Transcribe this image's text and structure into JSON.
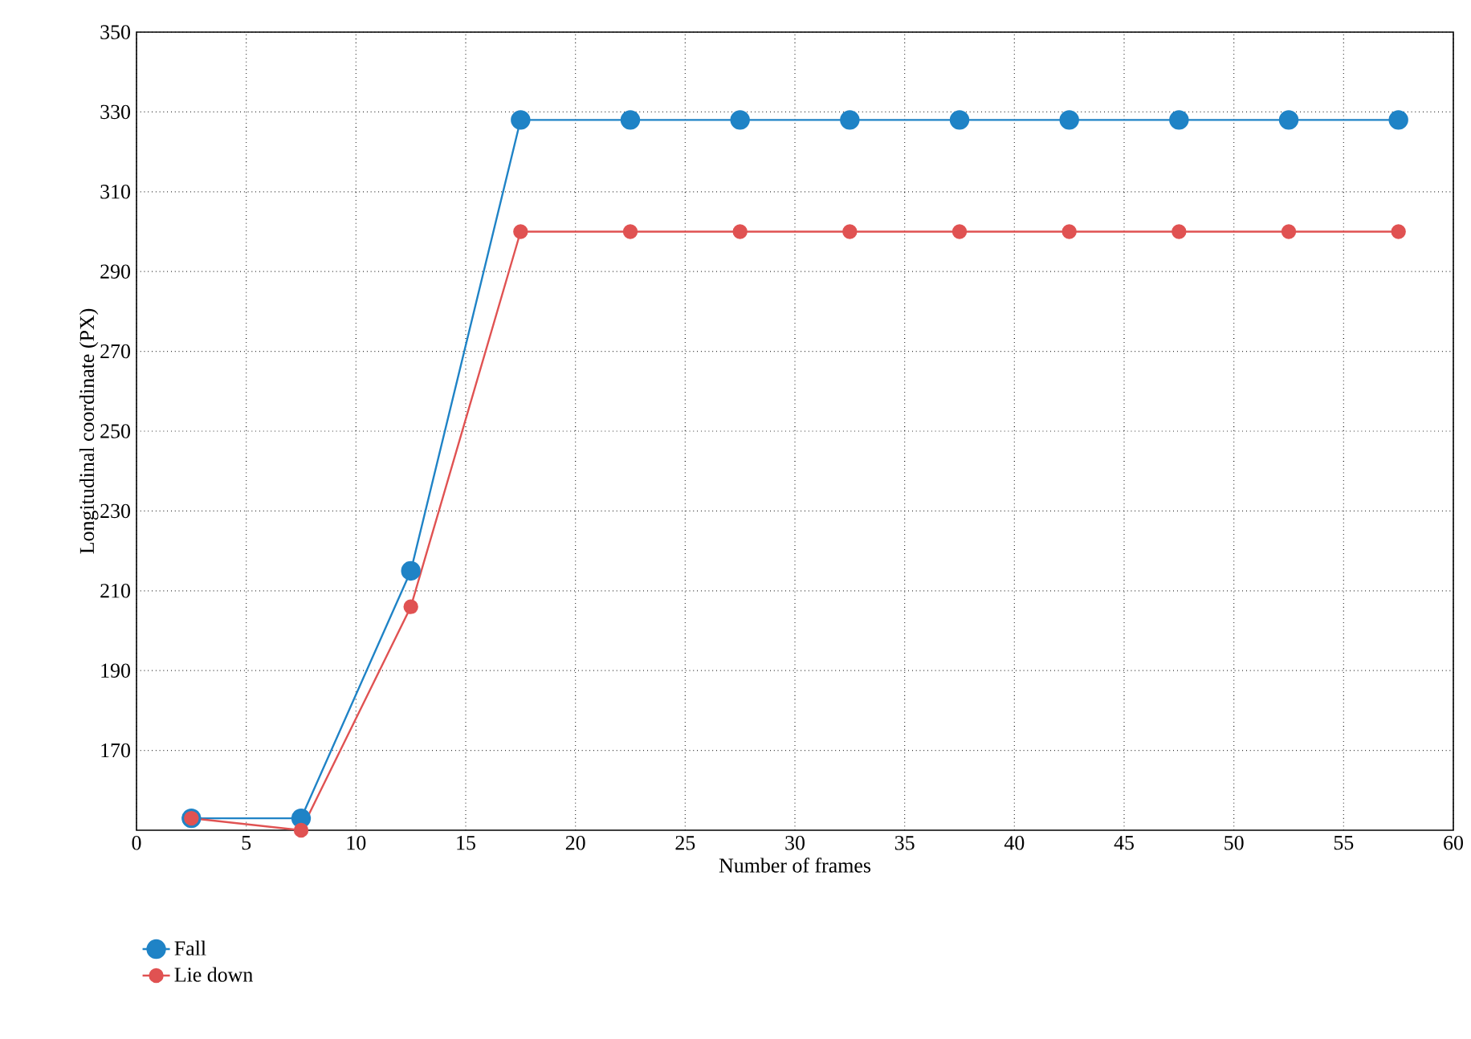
{
  "chart_data": {
    "type": "line",
    "xlabel": "Number of frames",
    "ylabel": "Longitudinal coordinate (PX)",
    "xlim": [
      0,
      60
    ],
    "ylim": [
      150,
      350
    ],
    "xticks": [
      0,
      5,
      10,
      15,
      20,
      25,
      30,
      35,
      40,
      45,
      50,
      55,
      60
    ],
    "yticks": [
      170,
      190,
      210,
      230,
      250,
      270,
      290,
      310,
      330,
      350
    ],
    "grid": true,
    "legend": "bottom left",
    "marker": "circle",
    "line_style": "solid",
    "series": [
      {
        "name": "Fall",
        "color": "#1f83c6",
        "x": [
          2.5,
          7.5,
          12.5,
          17.5,
          22.5,
          27.5,
          32.5,
          37.5,
          42.5,
          47.5,
          52.5,
          57.5
        ],
        "values": [
          153,
          153,
          215,
          328,
          328,
          328,
          328,
          328,
          328,
          328,
          328,
          328
        ]
      },
      {
        "name": "Lie down",
        "color": "#e05252",
        "x": [
          2.5,
          7.5,
          12.5,
          17.5,
          22.5,
          27.5,
          32.5,
          37.5,
          42.5,
          47.5,
          52.5,
          57.5
        ],
        "values": [
          153,
          150,
          206,
          300,
          300,
          300,
          300,
          300,
          300,
          300,
          300,
          300
        ]
      }
    ]
  }
}
